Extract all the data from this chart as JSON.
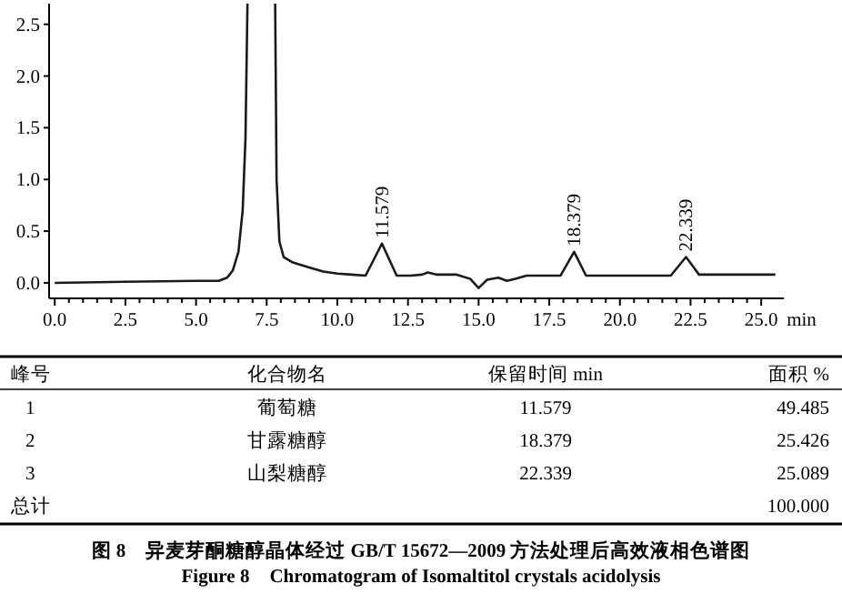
{
  "chart_data": [
    {
      "type": "line",
      "xlabel": "min",
      "series": [
        {
          "color": "#1a1a1a",
          "x": [
            0,
            2.5,
            5.0,
            5.8,
            6.1,
            6.3,
            6.5,
            6.65,
            6.75,
            6.82
          ],
          "values": [
            0.0,
            0.01,
            0.02,
            0.02,
            0.05,
            0.12,
            0.3,
            0.7,
            1.4,
            2.7
          ]
        },
        {
          "color": "#1a1a1a",
          "x": [
            7.8,
            7.85,
            7.95,
            8.1,
            8.4,
            9.0,
            9.5,
            10.0,
            10.5,
            11.0,
            11.579,
            12.1,
            12.6,
            13.0,
            13.2,
            13.5,
            14.2,
            14.7,
            15.0,
            15.3,
            15.7,
            16.0,
            16.3,
            16.7,
            17.9,
            18.379,
            18.8,
            21.8,
            22.339,
            22.8,
            25.5
          ],
          "values": [
            2.7,
            1.0,
            0.4,
            0.25,
            0.2,
            0.15,
            0.11,
            0.09,
            0.08,
            0.07,
            0.38,
            0.07,
            0.07,
            0.08,
            0.1,
            0.08,
            0.08,
            0.04,
            -0.05,
            0.03,
            0.05,
            0.02,
            0.04,
            0.07,
            0.07,
            0.3,
            0.07,
            0.07,
            0.25,
            0.08,
            0.08
          ]
        }
      ],
      "xlim": [
        -0.2,
        25.8
      ],
      "ylim": [
        -0.15,
        2.7
      ],
      "xticks": [
        {
          "value": 0,
          "label": "0.0"
        },
        2.5,
        {
          "value": 5,
          "label": "5.0"
        },
        7.5,
        {
          "value": 10,
          "label": "10.0"
        },
        12.5,
        {
          "value": 15,
          "label": "15.0"
        },
        17.5,
        {
          "value": 20,
          "label": "20.0"
        },
        22.5,
        {
          "value": 25,
          "label": "25.0"
        }
      ],
      "yticks": [
        {
          "value": 0,
          "label": "0.0"
        },
        0.5,
        {
          "value": 1,
          "label": "1.0"
        },
        1.5,
        {
          "value": 2,
          "label": "2.0"
        },
        2.5
      ],
      "annotations": [
        {
          "text": "11.579",
          "x": 11.579,
          "y": 0.38
        },
        {
          "text": "18.379",
          "x": 18.379,
          "y": 0.3
        },
        {
          "text": "22.339",
          "x": 22.339,
          "y": 0.25
        }
      ],
      "grid": false,
      "marker": "none",
      "line_style": "solid"
    },
    {
      "type": "other",
      "categories": [
        "峰号",
        "化合物名",
        "保留时间 min",
        "面积 %"
      ],
      "cell_labels": [
        [
          "1",
          "葡萄糖",
          "11.579",
          "49.485"
        ],
        [
          "2",
          "甘露糖醇",
          "18.379",
          "25.426"
        ],
        [
          "3",
          "山梨糖醇",
          "22.339",
          "25.089"
        ],
        [
          "总计",
          null,
          null,
          "100.000"
        ]
      ],
      "annotations": [
        "图 8　异麦芽酮糖醇晶体经过 GB/T 15672—2009 方法处理后高效液相色谱图",
        "Figure 8　Chromatogram of Isomaltitol crystals acidolysis"
      ]
    }
  ]
}
